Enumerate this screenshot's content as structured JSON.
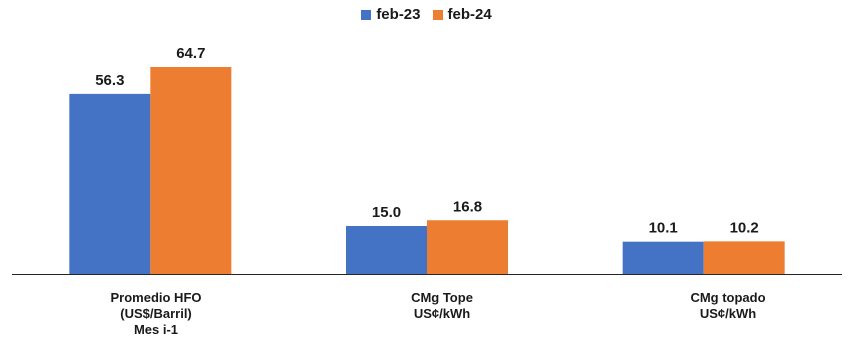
{
  "chart_data": {
    "type": "bar",
    "categories": [
      [
        "Promedio HFO",
        "(US$/Barril)",
        "Mes i-1"
      ],
      [
        "CMg Tope",
        "US¢/kWh"
      ],
      [
        "CMg topado",
        "US¢/kWh"
      ]
    ],
    "series": [
      {
        "name": "feb-23",
        "color": "#4472C4",
        "values": [
          56.3,
          15.0,
          10.1
        ],
        "labels": [
          "56.3",
          "15.0",
          "10.1"
        ]
      },
      {
        "name": "feb-24",
        "color": "#ED7D31",
        "values": [
          64.7,
          16.8,
          10.2
        ],
        "labels": [
          "64.7",
          "16.8",
          "10.2"
        ]
      }
    ],
    "ylim": [
      0,
      64.7
    ],
    "grid": false,
    "legend_position": "top-center"
  }
}
